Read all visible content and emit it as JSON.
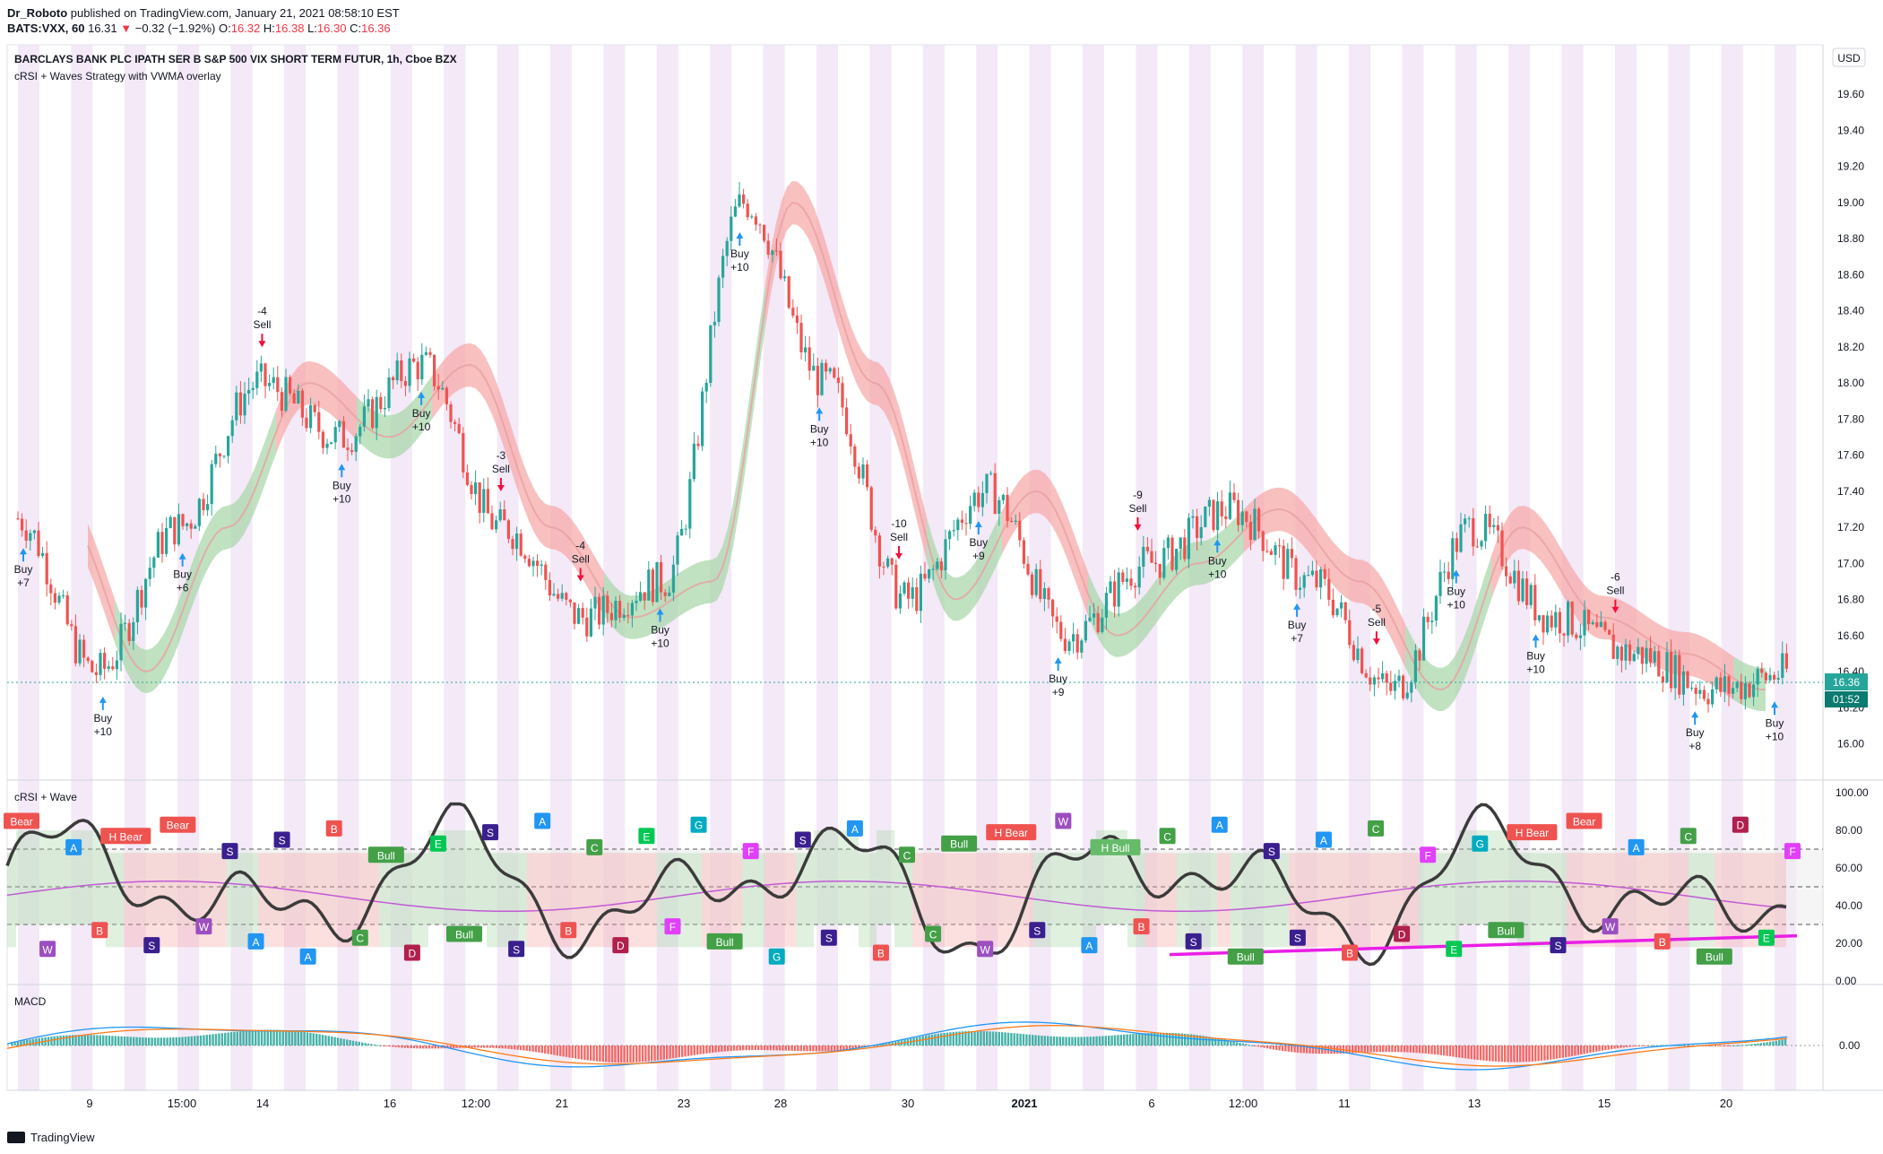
{
  "header": {
    "author": "Dr_Roboto",
    "published": "published on TradingView.com, January 21, 2021 08:58:10 EST",
    "symbol": "BATS:VXX, 60",
    "last": "16.31",
    "change_arrow": "▼",
    "change": "−0.32 (−1.92%)",
    "o_label": "O:",
    "o": "16.32",
    "h_label": "H:",
    "h": "16.38",
    "l_label": "L:",
    "l": "16.30",
    "c_label": "C:",
    "c": "16.36"
  },
  "main": {
    "title": "BARCLAYS BANK PLC IPATH SER B S&P 500 VIX SHORT TERM FUTUR, 1h, Cboe BZX",
    "subtitle": "cRSI + Waves Strategy with VWMA overlay",
    "currency": "USD",
    "price_ticks": [
      "19.60",
      "19.40",
      "19.20",
      "19.00",
      "18.80",
      "18.60",
      "18.40",
      "18.20",
      "18.00",
      "17.80",
      "17.60",
      "17.40",
      "17.20",
      "17.00",
      "16.80",
      "16.60",
      "16.40",
      "16.20",
      "16.00"
    ],
    "last_price_label": "16.36",
    "countdown": "01:52"
  },
  "crsi_panel": {
    "title": "cRSI + Wave",
    "ticks": [
      "100.00",
      "80.00",
      "60.00",
      "40.00",
      "20.00",
      "0.00"
    ]
  },
  "macd_panel": {
    "title": "MACD",
    "ticks": [
      "0.00"
    ]
  },
  "x_axis": {
    "labels": [
      "9",
      "15:00",
      "14",
      "16",
      "12:00",
      "21",
      "23",
      "28",
      "30",
      "2021",
      "6",
      "12:00",
      "11",
      "13",
      "15",
      "20"
    ]
  },
  "footer": {
    "logo_text": "TradingView"
  },
  "colors": {
    "up": "#26a69a",
    "down": "#ef5350",
    "band_bull": "#a5d6a7",
    "band_bear": "#f6a5a5",
    "session_shade": "#f3e9f7",
    "crsi_line": "#3b3b3b",
    "crsi_ma": "#c25ad6",
    "trendline": "#e91ee6",
    "macd_line": "#2196f3",
    "signal_line": "#ff7a1a",
    "buy_arrow": "#2196f3",
    "sell_arrow": "#f50f3b"
  },
  "signals": [
    {
      "text1": "Buy",
      "text2": "+7",
      "side": "buy"
    },
    {
      "text1": "Buy",
      "text2": "+10",
      "side": "buy"
    },
    {
      "text1": "Buy",
      "text2": "+6",
      "side": "buy"
    },
    {
      "text1": "-4",
      "text2": "Sell",
      "side": "sell"
    },
    {
      "text1": "Buy",
      "text2": "+10",
      "side": "buy"
    },
    {
      "text1": "Buy",
      "text2": "+10",
      "side": "buy"
    },
    {
      "text1": "-3",
      "text2": "Sell",
      "side": "sell"
    },
    {
      "text1": "-4",
      "text2": "Sell",
      "side": "sell"
    },
    {
      "text1": "Buy",
      "text2": "+10",
      "side": "buy"
    },
    {
      "text1": "Buy",
      "text2": "+10",
      "side": "buy"
    },
    {
      "text1": "Buy",
      "text2": "+10",
      "side": "buy"
    },
    {
      "text1": "-10",
      "text2": "Sell",
      "side": "sell"
    },
    {
      "text1": "Buy",
      "text2": "+9",
      "side": "buy"
    },
    {
      "text1": "Buy",
      "text2": "+9",
      "side": "buy"
    },
    {
      "text1": "-9",
      "text2": "Sell",
      "side": "sell"
    },
    {
      "text1": "Buy",
      "text2": "+10",
      "side": "buy"
    },
    {
      "text1": "Buy",
      "text2": "+7",
      "side": "buy"
    },
    {
      "text1": "-5",
      "text2": "Sell",
      "side": "sell"
    },
    {
      "text1": "Buy",
      "text2": "+10",
      "side": "buy"
    },
    {
      "text1": "Buy",
      "text2": "+10",
      "side": "buy"
    },
    {
      "text1": "-6",
      "text2": "Sell",
      "side": "sell"
    },
    {
      "text1": "Buy",
      "text2": "+8",
      "side": "buy"
    },
    {
      "text1": "Buy",
      "text2": "+10",
      "side": "buy"
    }
  ],
  "wave_labels": [
    {
      "text": "Bear",
      "color": "#ef5350"
    },
    {
      "text": "W",
      "color": "#9c4fc0"
    },
    {
      "text": "A",
      "color": "#2196f3"
    },
    {
      "text": "B",
      "color": "#ef5350"
    },
    {
      "text": "H Bear",
      "color": "#ef5350"
    },
    {
      "text": "S",
      "color": "#3a1f8f"
    },
    {
      "text": "Bear",
      "color": "#ef5350"
    },
    {
      "text": "W",
      "color": "#9c4fc0"
    },
    {
      "text": "S",
      "color": "#3a1f8f"
    },
    {
      "text": "A",
      "color": "#2196f3"
    },
    {
      "text": "S",
      "color": "#3a1f8f"
    },
    {
      "text": "A",
      "color": "#2196f3"
    },
    {
      "text": "B",
      "color": "#ef5350"
    },
    {
      "text": "C",
      "color": "#43a047"
    },
    {
      "text": "Bull",
      "color": "#43a047"
    },
    {
      "text": "D",
      "color": "#b0204d"
    },
    {
      "text": "E",
      "color": "#00c853"
    },
    {
      "text": "Bull",
      "color": "#43a047"
    },
    {
      "text": "S",
      "color": "#3a1f8f"
    },
    {
      "text": "S",
      "color": "#3a1f8f"
    },
    {
      "text": "A",
      "color": "#2196f3"
    },
    {
      "text": "B",
      "color": "#ef5350"
    },
    {
      "text": "C",
      "color": "#43a047"
    },
    {
      "text": "D",
      "color": "#b0204d"
    },
    {
      "text": "E",
      "color": "#00c853"
    },
    {
      "text": "F",
      "color": "#e040fb"
    },
    {
      "text": "G",
      "color": "#00acc1"
    },
    {
      "text": "Bull",
      "color": "#43a047"
    },
    {
      "text": "F",
      "color": "#e040fb"
    },
    {
      "text": "G",
      "color": "#00acc1"
    },
    {
      "text": "S",
      "color": "#3a1f8f"
    },
    {
      "text": "S",
      "color": "#3a1f8f"
    },
    {
      "text": "A",
      "color": "#2196f3"
    },
    {
      "text": "B",
      "color": "#ef5350"
    },
    {
      "text": "C",
      "color": "#43a047"
    },
    {
      "text": "C",
      "color": "#43a047"
    },
    {
      "text": "Bull",
      "color": "#43a047"
    },
    {
      "text": "W",
      "color": "#9c4fc0"
    },
    {
      "text": "H Bear",
      "color": "#ef5350"
    },
    {
      "text": "S",
      "color": "#3a1f8f"
    },
    {
      "text": "W",
      "color": "#9c4fc0"
    },
    {
      "text": "A",
      "color": "#2196f3"
    },
    {
      "text": "H Bull",
      "color": "#66bb6a"
    },
    {
      "text": "B",
      "color": "#ef5350"
    },
    {
      "text": "C",
      "color": "#43a047"
    },
    {
      "text": "S",
      "color": "#3a1f8f"
    },
    {
      "text": "A",
      "color": "#2196f3"
    },
    {
      "text": "Bull",
      "color": "#43a047"
    },
    {
      "text": "S",
      "color": "#3a1f8f"
    },
    {
      "text": "S",
      "color": "#3a1f8f"
    },
    {
      "text": "A",
      "color": "#2196f3"
    },
    {
      "text": "B",
      "color": "#ef5350"
    },
    {
      "text": "C",
      "color": "#43a047"
    },
    {
      "text": "D",
      "color": "#b0204d"
    },
    {
      "text": "F",
      "color": "#e040fb"
    },
    {
      "text": "E",
      "color": "#00c853"
    },
    {
      "text": "G",
      "color": "#00acc1"
    },
    {
      "text": "Bull",
      "color": "#43a047"
    },
    {
      "text": "H Bear",
      "color": "#ef5350"
    },
    {
      "text": "S",
      "color": "#3a1f8f"
    },
    {
      "text": "Bear",
      "color": "#ef5350"
    },
    {
      "text": "W",
      "color": "#9c4fc0"
    },
    {
      "text": "A",
      "color": "#2196f3"
    },
    {
      "text": "B",
      "color": "#ef5350"
    },
    {
      "text": "C",
      "color": "#43a047"
    },
    {
      "text": "Bull",
      "color": "#43a047"
    },
    {
      "text": "D",
      "color": "#b0204d"
    },
    {
      "text": "E",
      "color": "#00c853"
    },
    {
      "text": "F",
      "color": "#e040fb"
    }
  ],
  "chart_data": {
    "type": "candlestick",
    "title": "BARCLAYS BANK PLC IPATH SER B S&P 500 VIX SHORT TERM FUTUR, 1h, Cboe BZX",
    "ylim": [
      15.86,
      19.8
    ],
    "series": [
      {
        "name": "",
        "type": "close_path",
        "x_labels": [
          "9",
          "15:00",
          "14",
          "16",
          "12:00",
          "21",
          "23",
          "28",
          "30",
          "2021",
          "6",
          "12:00",
          "11",
          "13",
          "15",
          "20"
        ],
        "anchor_values": [
          17.25,
          16.4,
          17.2,
          18.0,
          17.7,
          18.1,
          17.2,
          16.7,
          16.9,
          19.0,
          18.0,
          16.8,
          17.4,
          16.6,
          17.0,
          17.3,
          16.9,
          16.3,
          17.2,
          16.7,
          16.5,
          16.3,
          16.4
        ]
      }
    ],
    "crsi_ylim": [
      0,
      100
    ],
    "crsi_levels": [
      30,
      50,
      70
    ]
  }
}
